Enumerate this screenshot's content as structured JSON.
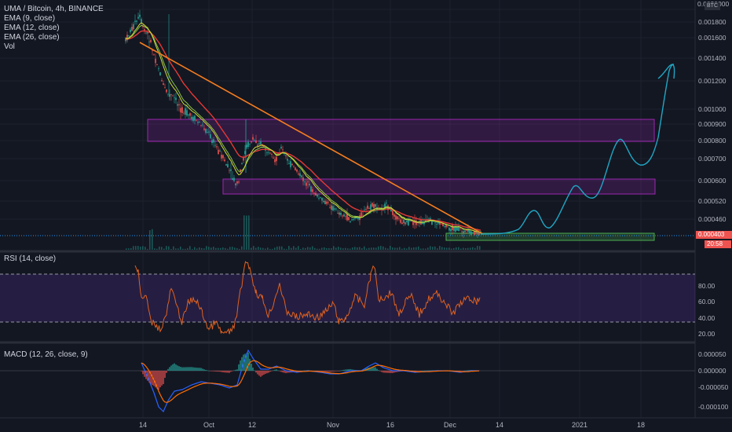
{
  "legend": {
    "symbol": "UMA / Bitcoin, 4h, BINANCE",
    "ema9": "EMA (9, close)",
    "ema12": "EMA (12, close)",
    "ema26": "EMA (26, close)",
    "vol": "Vol"
  },
  "price_axis": {
    "currency": "BTC",
    "top_label": "0.0020000",
    "ticks": [
      "0.001800",
      "0.001600",
      "0.001400",
      "0.001200",
      "0.001000",
      "0.000900",
      "0.000800",
      "0.000700",
      "0.000600",
      "0.000520",
      "0.000460"
    ],
    "current_price": "0.000403",
    "countdown": "20:58"
  },
  "rsi": {
    "title": "RSI (14, close)",
    "ticks": [
      "80.00",
      "60.00",
      "40.00",
      "20.00"
    ],
    "upper_band": 70,
    "lower_band": 30
  },
  "macd": {
    "title": "MACD (12, 26, close, 9)",
    "ticks": [
      "0.000050",
      "0.000000",
      "-0.000050",
      "-0.000100"
    ]
  },
  "time_axis": [
    "14",
    "Oct",
    "12",
    "Nov",
    "16",
    "Dec",
    "14",
    "2021",
    "18"
  ],
  "colors": {
    "background": "#131722",
    "trendline": "#f57c1f",
    "zone": "#9c27b0",
    "support_zone": "#4caf50",
    "projection": "#1fa7c4",
    "rsi_line": "#e0611f",
    "macd_line": "#2962ff",
    "signal_line": "#ff6d00",
    "current_price_badge": "#ef5350"
  },
  "chart_data": {
    "type": "line",
    "title": "UMA / Bitcoin, 4h, BINANCE",
    "y_scale": "log",
    "x_ticks": [
      "14",
      "Oct",
      "12",
      "Nov",
      "16",
      "Dec",
      "14",
      "2021",
      "18"
    ],
    "series": [
      {
        "name": "close",
        "points": [
          [
            "14",
            0.0016
          ],
          [
            "14",
            0.00172
          ],
          [
            "",
            0.0015
          ],
          [
            "",
            0.0012
          ],
          [
            "",
            0.00106
          ],
          [
            "",
            0.00098
          ],
          [
            "Oct",
            0.00086
          ],
          [
            "",
            0.0007
          ],
          [
            "",
            0.00058
          ],
          [
            "12",
            0.00081
          ],
          [
            "",
            0.00078
          ],
          [
            "",
            0.0008
          ],
          [
            "",
            0.00069
          ],
          [
            "Nov",
            0.00056
          ],
          [
            "",
            0.00049
          ],
          [
            "",
            0.00046
          ],
          [
            "16",
            0.00051
          ],
          [
            "",
            0.00045
          ],
          [
            "",
            0.00044
          ],
          [
            "Dec",
            0.00042
          ],
          [
            "",
            0.000403
          ]
        ]
      }
    ],
    "annotations": {
      "trendline": [
        [
          0.00157
        ],
        [
          0.000405
        ]
      ],
      "zones": [
        [
          0.00082,
          0.0009
        ],
        [
          0.00055,
          0.00061
        ]
      ],
      "support_zone": [
        0.000395,
        0.000412
      ],
      "projection_peaks": [
        0.00046,
        0.00058,
        0.00082,
        0.00132
      ]
    },
    "rsi_range": [
      20,
      80
    ],
    "macd_range": [
      -0.00012,
      6e-05
    ],
    "grid": true,
    "legend": "top-left"
  }
}
